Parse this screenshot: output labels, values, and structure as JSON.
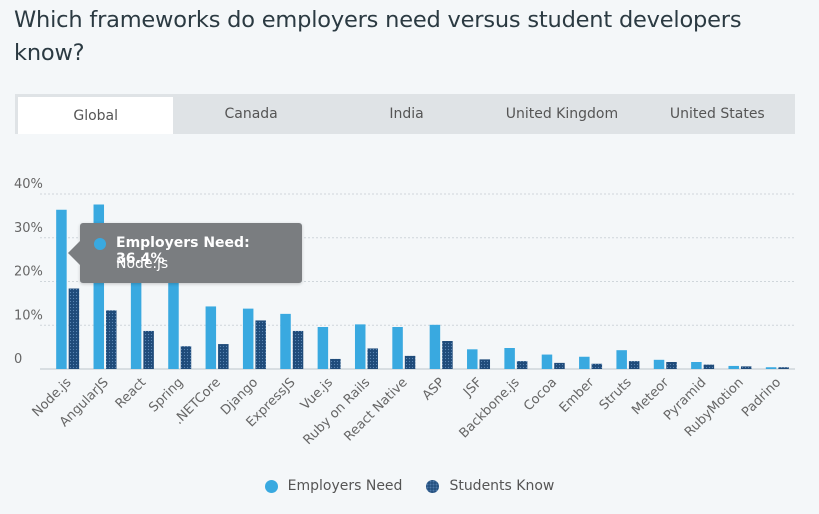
{
  "title": "Which frameworks do employers need versus student developers know?",
  "tabs": [
    {
      "label": "Global",
      "active": true
    },
    {
      "label": "Canada",
      "active": false
    },
    {
      "label": "India",
      "active": false
    },
    {
      "label": "United Kingdom",
      "active": false
    },
    {
      "label": "United States",
      "active": false
    }
  ],
  "tooltip": {
    "series": "Employers Need",
    "value": "36.4%",
    "category": "Node.js"
  },
  "colors": {
    "employers": "#39a9e0",
    "students": "#1f4b7a",
    "grid": "#cfd6db",
    "axis_text": "#666666"
  },
  "chart_data": {
    "type": "bar",
    "title": "Which frameworks do employers need versus student developers know?",
    "xlabel": "",
    "ylabel": "",
    "ylim": [
      0,
      40
    ],
    "yticks": [
      0,
      10,
      20,
      30,
      40
    ],
    "ytick_labels": [
      "0",
      "10%",
      "20%",
      "30%",
      "40%"
    ],
    "grid": true,
    "legend_position": "bottom-center",
    "categories": [
      "Node.js",
      "AngularJS",
      "React",
      "Spring",
      ".NETCore",
      "Django",
      "ExpressJS",
      "Vue.js",
      "Ruby on Rails",
      "React Native",
      "ASP",
      "JSF",
      "Backbone.js",
      "Cocoa",
      "Ember",
      "Struts",
      "Meteor",
      "Pyramid",
      "RubyMotion",
      "Padrino"
    ],
    "series": [
      {
        "name": "Employers Need",
        "values": [
          36.4,
          37.6,
          20.5,
          20.0,
          14.3,
          13.8,
          12.6,
          9.6,
          10.2,
          9.6,
          10.1,
          4.5,
          4.8,
          3.3,
          2.8,
          4.3,
          2.1,
          1.6,
          0.7,
          0.4
        ]
      },
      {
        "name": "Students Know",
        "values": [
          18.4,
          13.4,
          8.7,
          5.2,
          5.7,
          11.1,
          8.7,
          2.3,
          4.7,
          3.0,
          6.4,
          2.2,
          1.8,
          1.4,
          1.2,
          1.8,
          1.6,
          1.0,
          0.6,
          0.4
        ]
      }
    ]
  },
  "legend": {
    "employers_label": "Employers Need",
    "students_label": "Students Know"
  }
}
